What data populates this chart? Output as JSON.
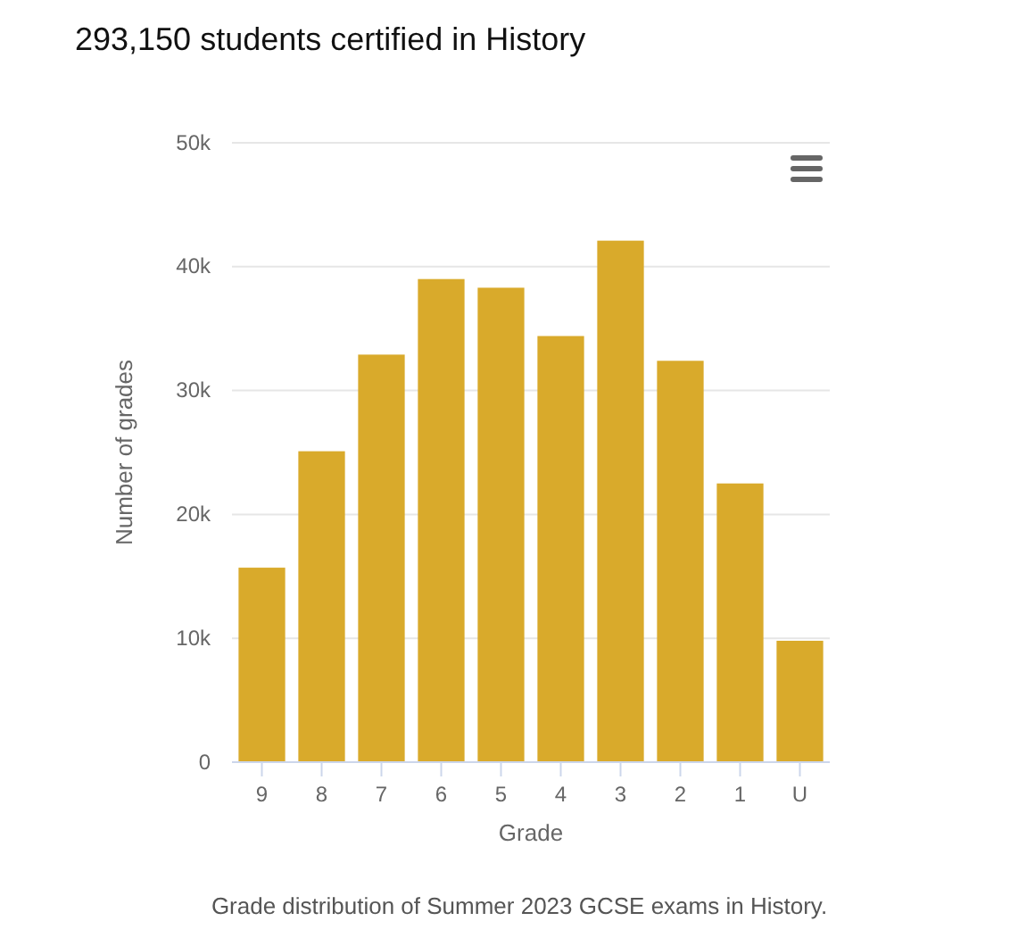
{
  "chart_data": {
    "type": "bar",
    "title": "293,150 students certified in History",
    "xlabel": "Grade",
    "ylabel": "Number of grades",
    "categories": [
      "9",
      "8",
      "7",
      "6",
      "5",
      "4",
      "3",
      "2",
      "1",
      "U"
    ],
    "values": [
      15700,
      25100,
      32900,
      39000,
      38300,
      34400,
      42100,
      32400,
      22500,
      9800
    ],
    "color": "#d9aa2b",
    "ylim": [
      0,
      50000
    ],
    "yticks": [
      {
        "value": 0,
        "label": "0"
      },
      {
        "value": 10000,
        "label": "10k"
      },
      {
        "value": 20000,
        "label": "20k"
      },
      {
        "value": 30000,
        "label": "30k"
      },
      {
        "value": 40000,
        "label": "40k"
      },
      {
        "value": 50000,
        "label": "50k"
      }
    ],
    "grid": "y",
    "annotations": [
      "Grade distribution of Summer 2023 GCSE exams in History."
    ]
  }
}
